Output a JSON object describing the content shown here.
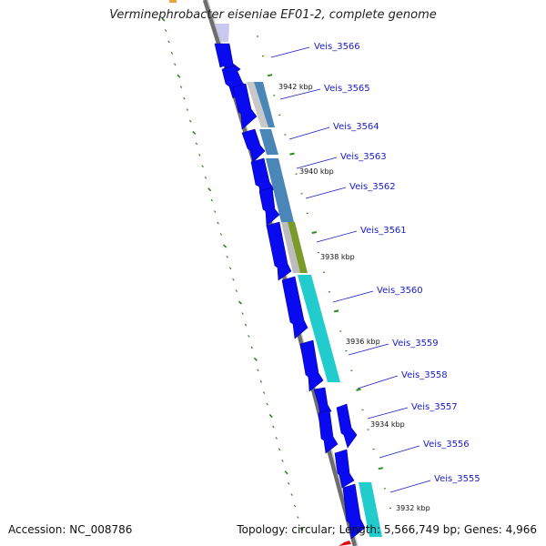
{
  "title": "Verminephrobacter eiseniae EF01-2, complete genome",
  "accession": "Accession: NC_008786",
  "summary": "Topology: circular; Length: 5,566,749 bp; Genes: 4,966",
  "colors": {
    "backbone": "#8a8a8a",
    "cds": "#0a0af0",
    "cds_dark": "#0000a0",
    "tick": "#2a8a1a",
    "label": "#1a1ac8",
    "band_gray": "#bdbdbd",
    "band_steel": "#4a86b8",
    "band_olive": "#7a9a2a",
    "band_cyan": "#22cccc",
    "accent_orange": "#f0a040",
    "accent_red": "#e01010"
  },
  "genes": [
    {
      "label": "Veis_3566"
    },
    {
      "label": "Veis_3565"
    },
    {
      "label": "Veis_3564"
    },
    {
      "label": "Veis_3563"
    },
    {
      "label": "Veis_3562"
    },
    {
      "label": "Veis_3561"
    },
    {
      "label": "Veis_3560"
    },
    {
      "label": "Veis_3559"
    },
    {
      "label": "Veis_3558"
    },
    {
      "label": "Veis_3557"
    },
    {
      "label": "Veis_3556"
    },
    {
      "label": "Veis_3555"
    }
  ],
  "kbp_markers": [
    {
      "label": "3942 kbp"
    },
    {
      "label": "3940 kbp"
    },
    {
      "label": "3938 kbp"
    },
    {
      "label": "3936 kbp"
    },
    {
      "label": "3934 kbp"
    },
    {
      "label": "3932 kbp"
    }
  ]
}
